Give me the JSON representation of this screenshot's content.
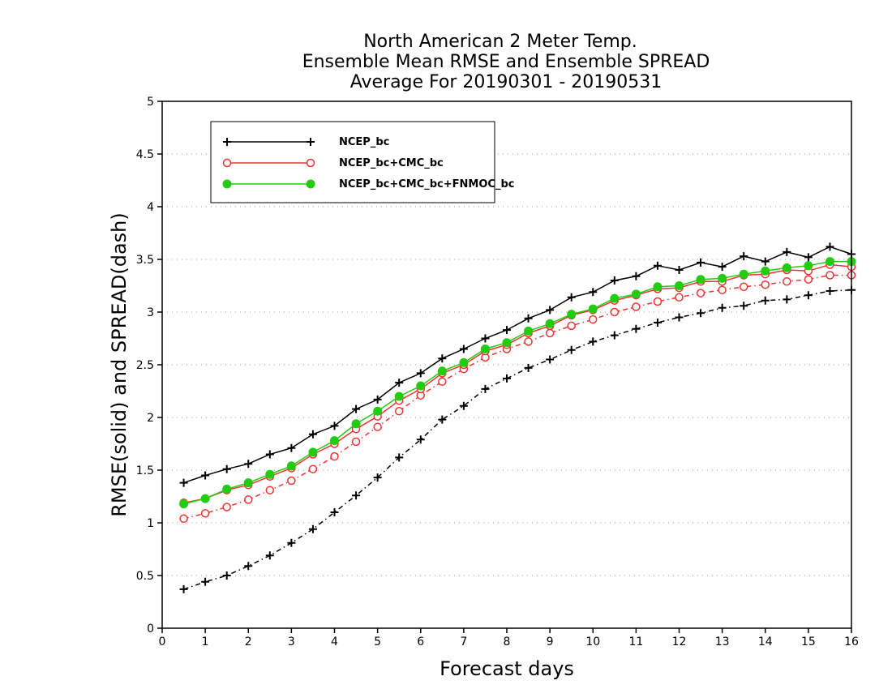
{
  "chart_data": {
    "type": "line",
    "title_lines": [
      "North American 2 Meter Temp.",
      "Ensemble Mean RMSE and Ensemble SPREAD",
      "Average For 20190301 - 20190531"
    ],
    "xlabel": "Forecast days",
    "ylabel": "RMSE(solid) and SPREAD(dash)",
    "xlim": [
      0,
      16
    ],
    "ylim": [
      0,
      5
    ],
    "x_ticks": [
      "0",
      "1",
      "2",
      "3",
      "4",
      "5",
      "6",
      "7",
      "8",
      "9",
      "10",
      "11",
      "12",
      "13",
      "14",
      "15",
      "16"
    ],
    "y_ticks": [
      "0",
      "0.5",
      "1",
      "1.5",
      "2",
      "2.5",
      "3",
      "3.5",
      "4",
      "4.5",
      "5"
    ],
    "grid": "horizontal dotted",
    "legend_position": "top-left",
    "x": [
      0.5,
      1,
      1.5,
      2,
      2.5,
      3,
      3.5,
      4,
      4.5,
      5,
      5.5,
      6,
      6.5,
      7,
      7.5,
      8,
      8.5,
      9,
      9.5,
      10,
      10.5,
      11,
      11.5,
      12,
      12.5,
      13,
      13.5,
      14,
      14.5,
      15,
      15.5,
      16
    ],
    "series": [
      {
        "name": "NCEP_bc",
        "color": "#000000",
        "marker": "plus",
        "rmse": [
          1.38,
          1.45,
          1.51,
          1.56,
          1.65,
          1.71,
          1.84,
          1.92,
          2.08,
          2.17,
          2.33,
          2.42,
          2.56,
          2.65,
          2.75,
          2.83,
          2.94,
          3.02,
          3.14,
          3.19,
          3.3,
          3.34,
          3.44,
          3.4,
          3.47,
          3.43,
          3.53,
          3.48,
          3.57,
          3.52,
          3.62,
          3.55
        ],
        "spread": [
          0.37,
          0.44,
          0.5,
          0.59,
          0.69,
          0.81,
          0.94,
          1.1,
          1.26,
          1.43,
          1.62,
          1.79,
          1.98,
          2.11,
          2.27,
          2.37,
          2.47,
          2.55,
          2.64,
          2.72,
          2.78,
          2.84,
          2.9,
          2.95,
          2.99,
          3.04,
          3.06,
          3.11,
          3.12,
          3.16,
          3.2,
          3.21
        ]
      },
      {
        "name": "NCEP_bc+CMC_bc",
        "color": "#ee3333",
        "marker": "open-circle",
        "rmse": [
          1.19,
          1.23,
          1.31,
          1.36,
          1.44,
          1.52,
          1.65,
          1.75,
          1.89,
          2.01,
          2.16,
          2.27,
          2.42,
          2.5,
          2.63,
          2.69,
          2.8,
          2.87,
          2.97,
          3.02,
          3.11,
          3.16,
          3.22,
          3.23,
          3.29,
          3.29,
          3.35,
          3.36,
          3.4,
          3.39,
          3.45,
          3.43
        ],
        "spread": [
          1.04,
          1.09,
          1.15,
          1.22,
          1.31,
          1.4,
          1.51,
          1.63,
          1.77,
          1.91,
          2.06,
          2.21,
          2.34,
          2.46,
          2.57,
          2.65,
          2.72,
          2.8,
          2.87,
          2.93,
          3.0,
          3.05,
          3.1,
          3.14,
          3.18,
          3.21,
          3.24,
          3.26,
          3.29,
          3.31,
          3.35,
          3.35
        ]
      },
      {
        "name": "NCEP_bc+CMC_bc+FNMOC_bc",
        "color": "#22cc11",
        "marker": "filled-circle",
        "rmse": [
          1.18,
          1.23,
          1.32,
          1.38,
          1.46,
          1.54,
          1.67,
          1.78,
          1.94,
          2.06,
          2.2,
          2.3,
          2.44,
          2.52,
          2.65,
          2.71,
          2.82,
          2.89,
          2.98,
          3.03,
          3.13,
          3.17,
          3.24,
          3.25,
          3.31,
          3.32,
          3.36,
          3.39,
          3.42,
          3.44,
          3.48,
          3.48
        ]
      }
    ]
  }
}
